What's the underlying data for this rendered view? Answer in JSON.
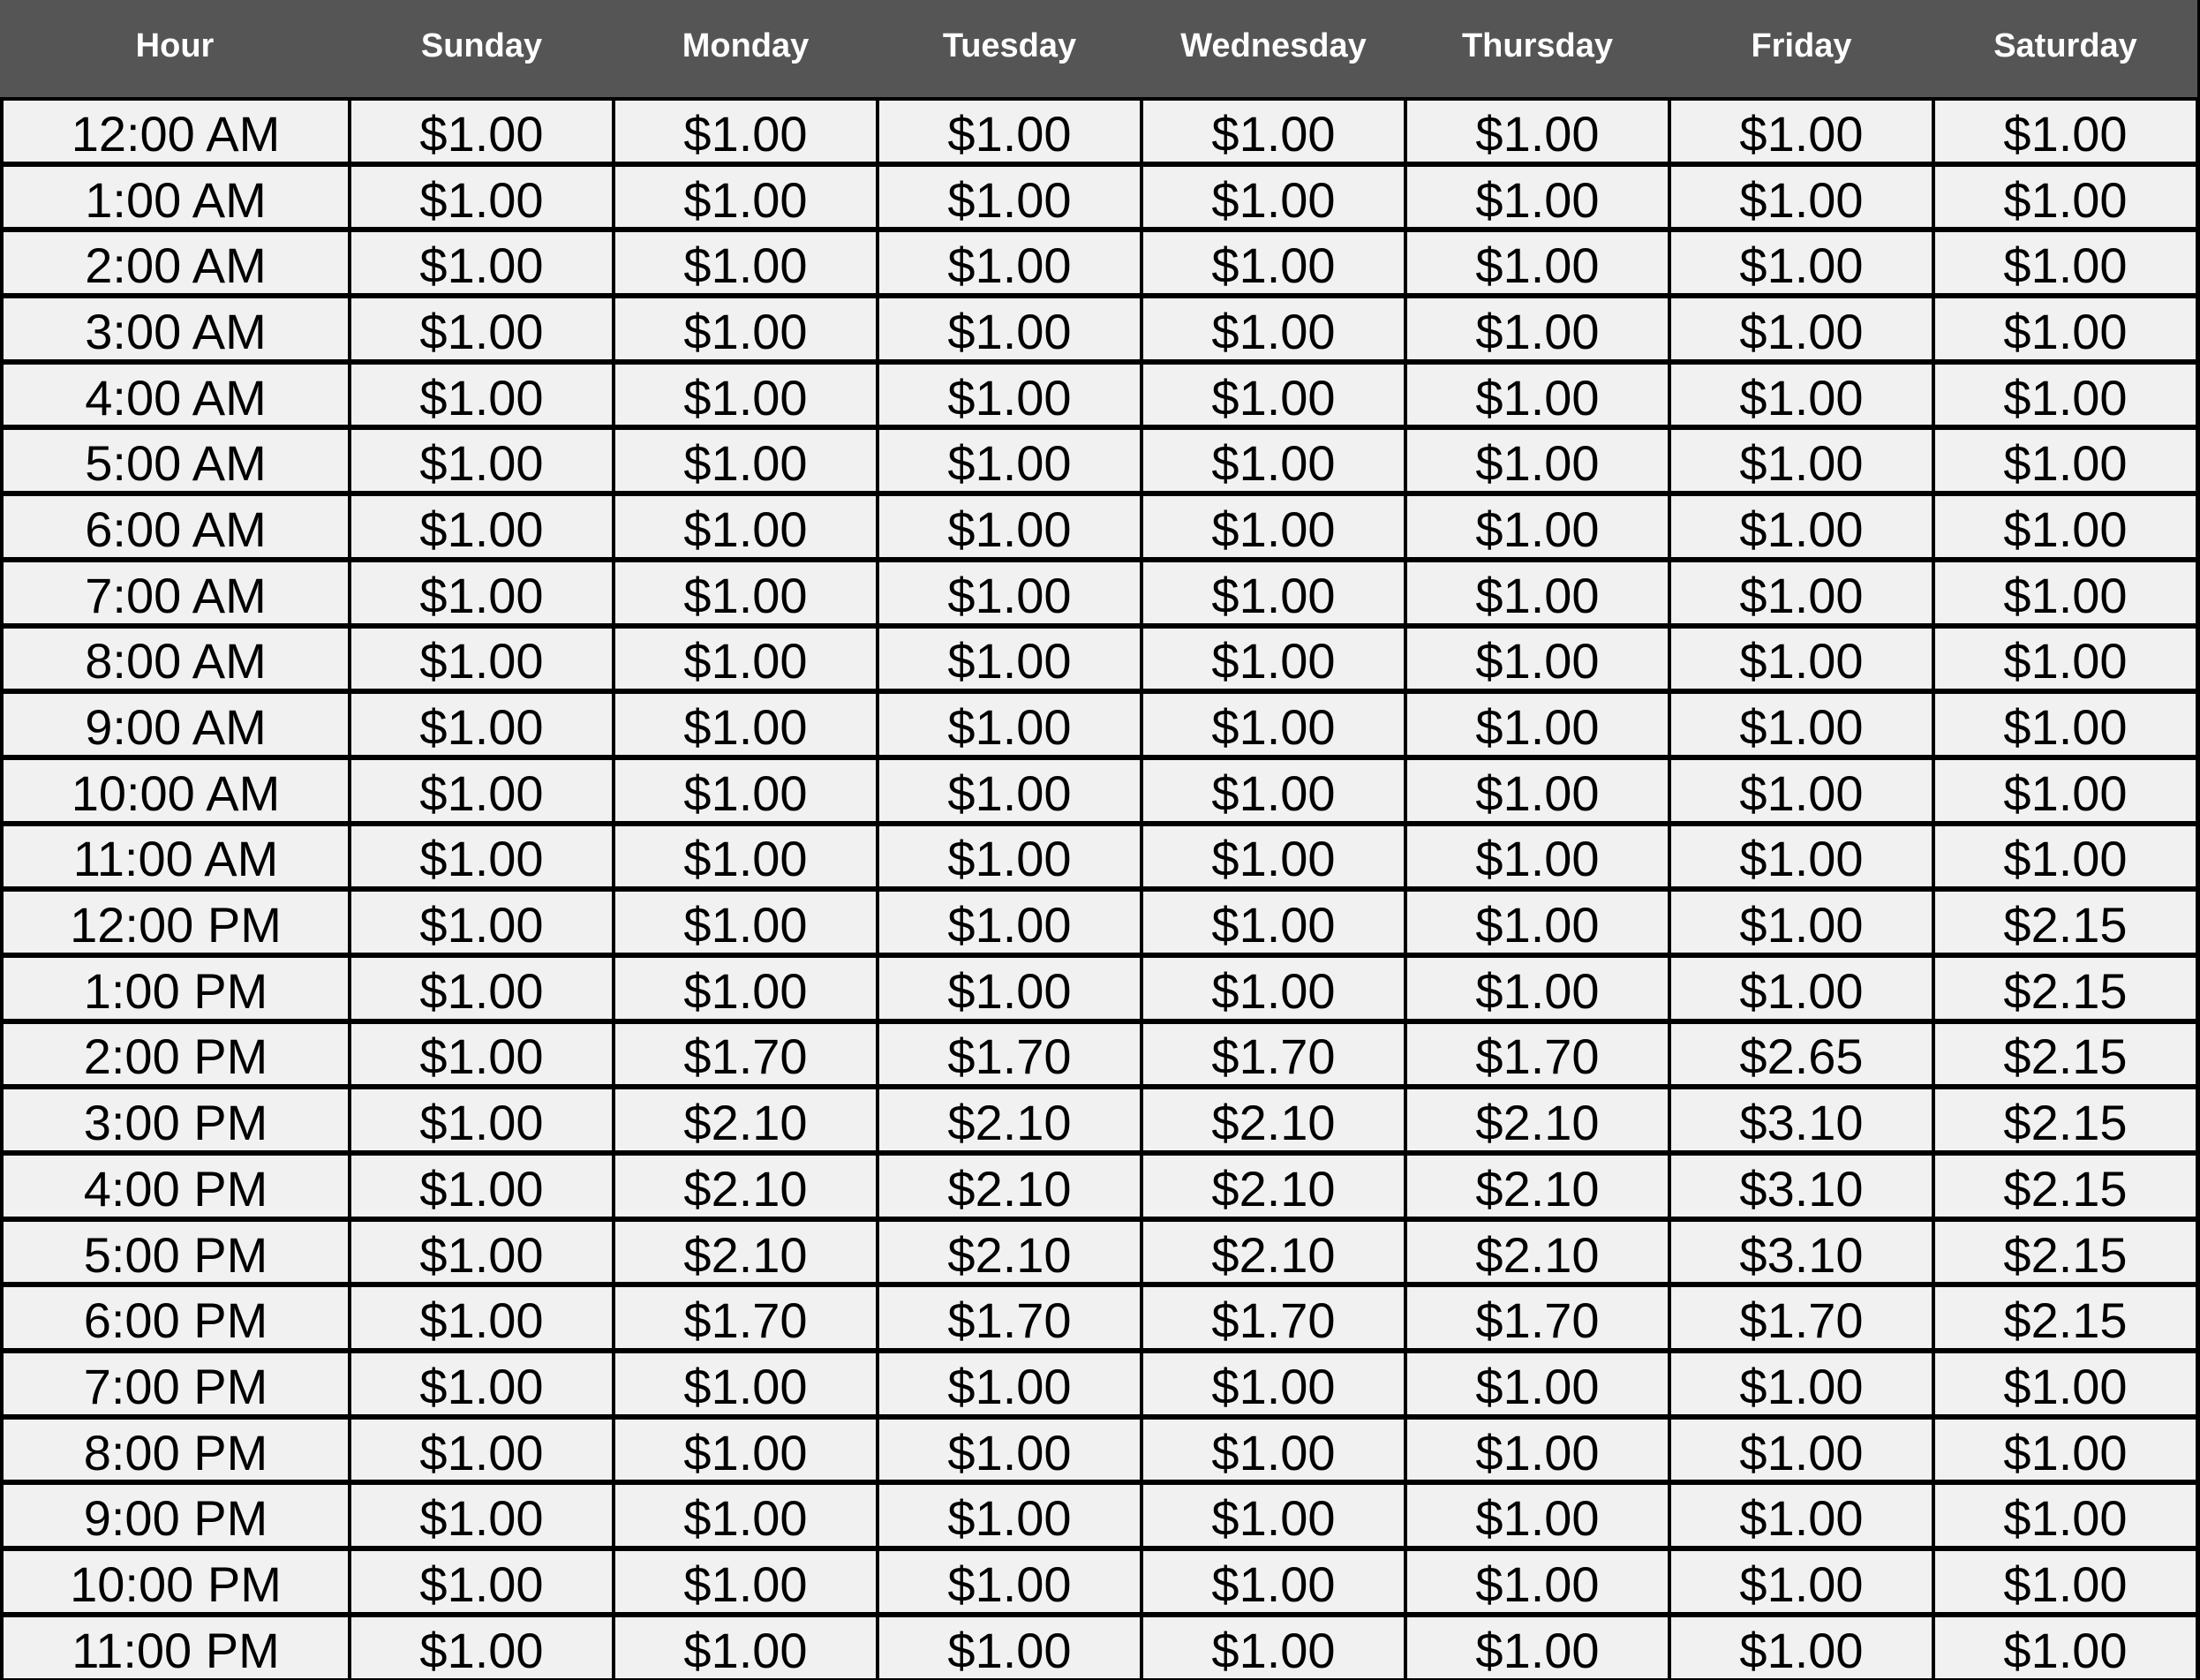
{
  "colors": {
    "header_bg": "#555555",
    "header_text": "#ffffff",
    "cell_bg": "#f1f1f1",
    "cell_text": "#000000"
  },
  "columns": [
    "Hour",
    "Sunday",
    "Monday",
    "Tuesday",
    "Wednesday",
    "Thursday",
    "Friday",
    "Saturday"
  ],
  "rows": [
    {
      "hour": "12:00 AM",
      "prices": [
        "$1.00",
        "$1.00",
        "$1.00",
        "$1.00",
        "$1.00",
        "$1.00",
        "$1.00"
      ]
    },
    {
      "hour": "1:00 AM",
      "prices": [
        "$1.00",
        "$1.00",
        "$1.00",
        "$1.00",
        "$1.00",
        "$1.00",
        "$1.00"
      ]
    },
    {
      "hour": "2:00 AM",
      "prices": [
        "$1.00",
        "$1.00",
        "$1.00",
        "$1.00",
        "$1.00",
        "$1.00",
        "$1.00"
      ]
    },
    {
      "hour": "3:00 AM",
      "prices": [
        "$1.00",
        "$1.00",
        "$1.00",
        "$1.00",
        "$1.00",
        "$1.00",
        "$1.00"
      ]
    },
    {
      "hour": "4:00 AM",
      "prices": [
        "$1.00",
        "$1.00",
        "$1.00",
        "$1.00",
        "$1.00",
        "$1.00",
        "$1.00"
      ]
    },
    {
      "hour": "5:00 AM",
      "prices": [
        "$1.00",
        "$1.00",
        "$1.00",
        "$1.00",
        "$1.00",
        "$1.00",
        "$1.00"
      ]
    },
    {
      "hour": "6:00 AM",
      "prices": [
        "$1.00",
        "$1.00",
        "$1.00",
        "$1.00",
        "$1.00",
        "$1.00",
        "$1.00"
      ]
    },
    {
      "hour": "7:00 AM",
      "prices": [
        "$1.00",
        "$1.00",
        "$1.00",
        "$1.00",
        "$1.00",
        "$1.00",
        "$1.00"
      ]
    },
    {
      "hour": "8:00 AM",
      "prices": [
        "$1.00",
        "$1.00",
        "$1.00",
        "$1.00",
        "$1.00",
        "$1.00",
        "$1.00"
      ]
    },
    {
      "hour": "9:00 AM",
      "prices": [
        "$1.00",
        "$1.00",
        "$1.00",
        "$1.00",
        "$1.00",
        "$1.00",
        "$1.00"
      ]
    },
    {
      "hour": "10:00 AM",
      "prices": [
        "$1.00",
        "$1.00",
        "$1.00",
        "$1.00",
        "$1.00",
        "$1.00",
        "$1.00"
      ]
    },
    {
      "hour": "11:00 AM",
      "prices": [
        "$1.00",
        "$1.00",
        "$1.00",
        "$1.00",
        "$1.00",
        "$1.00",
        "$1.00"
      ]
    },
    {
      "hour": "12:00 PM",
      "prices": [
        "$1.00",
        "$1.00",
        "$1.00",
        "$1.00",
        "$1.00",
        "$1.00",
        "$2.15"
      ]
    },
    {
      "hour": "1:00 PM",
      "prices": [
        "$1.00",
        "$1.00",
        "$1.00",
        "$1.00",
        "$1.00",
        "$1.00",
        "$2.15"
      ]
    },
    {
      "hour": "2:00 PM",
      "prices": [
        "$1.00",
        "$1.70",
        "$1.70",
        "$1.70",
        "$1.70",
        "$2.65",
        "$2.15"
      ]
    },
    {
      "hour": "3:00 PM",
      "prices": [
        "$1.00",
        "$2.10",
        "$2.10",
        "$2.10",
        "$2.10",
        "$3.10",
        "$2.15"
      ]
    },
    {
      "hour": "4:00 PM",
      "prices": [
        "$1.00",
        "$2.10",
        "$2.10",
        "$2.10",
        "$2.10",
        "$3.10",
        "$2.15"
      ]
    },
    {
      "hour": "5:00 PM",
      "prices": [
        "$1.00",
        "$2.10",
        "$2.10",
        "$2.10",
        "$2.10",
        "$3.10",
        "$2.15"
      ]
    },
    {
      "hour": "6:00 PM",
      "prices": [
        "$1.00",
        "$1.70",
        "$1.70",
        "$1.70",
        "$1.70",
        "$1.70",
        "$2.15"
      ]
    },
    {
      "hour": "7:00 PM",
      "prices": [
        "$1.00",
        "$1.00",
        "$1.00",
        "$1.00",
        "$1.00",
        "$1.00",
        "$1.00"
      ]
    },
    {
      "hour": "8:00 PM",
      "prices": [
        "$1.00",
        "$1.00",
        "$1.00",
        "$1.00",
        "$1.00",
        "$1.00",
        "$1.00"
      ]
    },
    {
      "hour": "9:00 PM",
      "prices": [
        "$1.00",
        "$1.00",
        "$1.00",
        "$1.00",
        "$1.00",
        "$1.00",
        "$1.00"
      ]
    },
    {
      "hour": "10:00 PM",
      "prices": [
        "$1.00",
        "$1.00",
        "$1.00",
        "$1.00",
        "$1.00",
        "$1.00",
        "$1.00"
      ]
    },
    {
      "hour": "11:00 PM",
      "prices": [
        "$1.00",
        "$1.00",
        "$1.00",
        "$1.00",
        "$1.00",
        "$1.00",
        "$1.00"
      ]
    }
  ]
}
